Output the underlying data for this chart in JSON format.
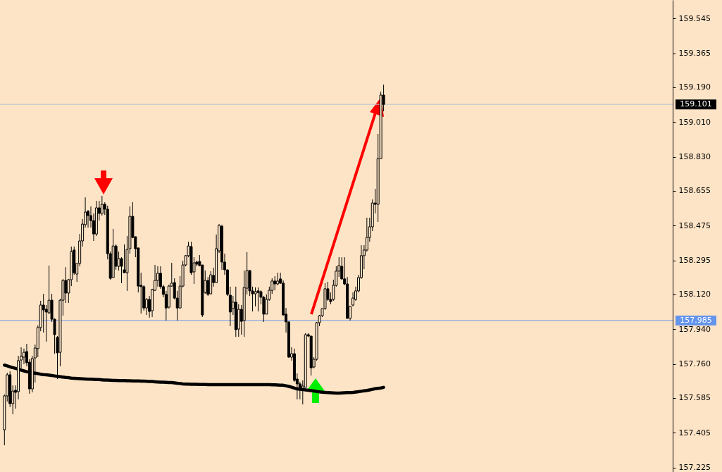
{
  "chart_data": {
    "type": "candlestick",
    "color": "#000000",
    "categories": [
      null,
      null,
      null,
      null,
      null,
      null,
      null,
      null,
      null,
      null,
      null,
      null,
      null,
      null,
      null,
      null,
      null,
      null,
      null,
      null,
      null,
      null,
      null,
      null,
      null,
      null,
      null,
      null,
      null,
      null,
      null,
      null,
      null,
      null,
      null,
      null,
      null,
      null,
      null,
      null,
      null,
      null,
      null,
      null,
      null,
      null,
      null,
      null,
      null,
      null,
      null,
      null,
      null,
      null,
      null,
      null,
      null,
      null,
      null,
      null,
      null,
      null,
      null,
      null,
      null,
      null,
      null,
      null,
      null,
      null,
      null,
      null,
      null,
      null,
      null,
      null,
      null,
      null,
      null,
      null,
      null,
      null,
      null,
      null,
      null,
      null,
      null,
      null,
      null,
      null,
      null,
      null,
      null,
      null,
      null,
      null,
      null,
      null,
      null,
      null,
      null,
      null,
      null,
      null,
      null,
      null,
      null,
      null,
      null,
      null,
      null,
      null,
      null,
      null,
      null,
      null,
      null,
      null,
      null,
      null,
      null,
      null,
      null,
      null,
      null,
      null,
      null,
      null,
      null,
      null,
      null,
      null,
      null,
      null,
      null,
      null,
      null
    ],
    "ohlc": [
      [
        157.421,
        157.603,
        157.341,
        157.596
      ],
      [
        157.596,
        157.716,
        157.567,
        157.705
      ],
      [
        157.705,
        157.723,
        157.538,
        157.556
      ],
      [
        157.556,
        157.65,
        157.501,
        157.621
      ],
      [
        157.625,
        157.65,
        157.53,
        157.614
      ],
      [
        157.618,
        157.803,
        157.578,
        157.778
      ],
      [
        157.781,
        157.847,
        157.738,
        157.8
      ],
      [
        157.796,
        157.84,
        157.76,
        157.821
      ],
      [
        157.825,
        157.865,
        157.749,
        157.767
      ],
      [
        157.77,
        157.785,
        157.607,
        157.632
      ],
      [
        157.632,
        157.803,
        157.614,
        157.789
      ],
      [
        157.792,
        157.861,
        157.665,
        157.843
      ],
      [
        157.84,
        157.96,
        157.796,
        157.949
      ],
      [
        157.949,
        158.087,
        157.93,
        158.065
      ],
      [
        158.065,
        158.123,
        157.923,
        158.04
      ],
      [
        158.043,
        158.065,
        157.876,
        158.029
      ],
      [
        158.025,
        158.269,
        158.018,
        158.09
      ],
      [
        158.09,
        158.123,
        157.978,
        157.992
      ],
      [
        157.992,
        157.996,
        157.814,
        157.912
      ],
      [
        157.898,
        157.905,
        157.683,
        157.818
      ],
      [
        157.821,
        158.098,
        157.749,
        158.09
      ],
      [
        158.09,
        158.2,
        158.01,
        158.192
      ],
      [
        158.192,
        158.261,
        158.076,
        158.127
      ],
      [
        158.127,
        158.2,
        158.076,
        158.196
      ],
      [
        158.196,
        158.367,
        158.163,
        158.341
      ],
      [
        158.349,
        158.367,
        158.221,
        158.232
      ],
      [
        158.225,
        158.28,
        158.185,
        158.28
      ],
      [
        158.28,
        158.432,
        158.265,
        158.396
      ],
      [
        158.396,
        158.509,
        158.367,
        158.483
      ],
      [
        158.48,
        158.621,
        158.465,
        158.545
      ],
      [
        158.549,
        158.556,
        158.465,
        158.527
      ],
      [
        158.527,
        158.574,
        158.465,
        158.501
      ],
      [
        158.501,
        158.538,
        158.396,
        158.432
      ],
      [
        158.432,
        158.603,
        158.421,
        158.567
      ],
      [
        158.567,
        158.603,
        158.501,
        158.538
      ],
      [
        158.538,
        158.629,
        158.527,
        158.585
      ],
      [
        158.585,
        158.596,
        158.53,
        158.56
      ],
      [
        158.56,
        158.578,
        158.301,
        158.33
      ],
      [
        158.33,
        158.341,
        158.196,
        158.203
      ],
      [
        158.207,
        158.458,
        158.207,
        158.37
      ],
      [
        158.37,
        158.378,
        158.247,
        158.265
      ],
      [
        158.265,
        158.341,
        158.243,
        158.305
      ],
      [
        158.305,
        158.312,
        158.178,
        158.265
      ],
      [
        158.247,
        158.378,
        158.229,
        158.232
      ],
      [
        158.232,
        158.421,
        158.138,
        158.352
      ],
      [
        158.356,
        158.574,
        158.33,
        158.523
      ],
      [
        158.523,
        158.596,
        158.41,
        158.414
      ],
      [
        158.418,
        158.418,
        158.312,
        158.356
      ],
      [
        158.36,
        158.36,
        158.13,
        158.163
      ],
      [
        158.167,
        158.232,
        158.021,
        158.16
      ],
      [
        158.16,
        158.167,
        158.036,
        158.05
      ],
      [
        158.05,
        158.101,
        158.014,
        158.094
      ],
      [
        158.094,
        158.112,
        158.0,
        158.032
      ],
      [
        158.036,
        158.149,
        158.003,
        158.145
      ],
      [
        158.141,
        158.272,
        158.138,
        158.192
      ],
      [
        158.192,
        158.265,
        158.16,
        158.229
      ],
      [
        158.229,
        158.265,
        158.149,
        158.16
      ],
      [
        158.16,
        158.17,
        158.105,
        158.12
      ],
      [
        158.12,
        158.138,
        157.985,
        158.05
      ],
      [
        158.054,
        158.17,
        158.047,
        158.163
      ],
      [
        158.163,
        158.283,
        158.16,
        158.178
      ],
      [
        158.181,
        158.203,
        158.094,
        158.101
      ],
      [
        158.101,
        158.138,
        157.985,
        158.05
      ],
      [
        158.05,
        158.214,
        158.047,
        158.163
      ],
      [
        158.163,
        158.294,
        158.156,
        158.272
      ],
      [
        158.272,
        158.323,
        158.265,
        158.32
      ],
      [
        158.32,
        158.392,
        158.312,
        158.37
      ],
      [
        158.367,
        158.392,
        158.221,
        158.232
      ],
      [
        158.236,
        158.312,
        158.174,
        158.283
      ],
      [
        158.287,
        158.294,
        158.265,
        158.276
      ],
      [
        158.29,
        158.323,
        158.265,
        158.269
      ],
      [
        158.272,
        158.272,
        158.003,
        158.014
      ],
      [
        158.13,
        158.243,
        158.123,
        158.192
      ],
      [
        158.192,
        158.21,
        158.112,
        158.12
      ],
      [
        158.123,
        158.24,
        158.12,
        158.221
      ],
      [
        158.218,
        158.258,
        158.16,
        158.181
      ],
      [
        158.181,
        158.429,
        158.178,
        158.356
      ],
      [
        158.345,
        158.483,
        158.334,
        158.476
      ],
      [
        158.472,
        158.48,
        158.247,
        158.287
      ],
      [
        158.287,
        158.33,
        158.221,
        158.247
      ],
      [
        158.247,
        158.247,
        158.112,
        158.12
      ],
      [
        158.116,
        158.16,
        157.956,
        158.029
      ],
      [
        158.047,
        158.112,
        158.014,
        158.08
      ],
      [
        158.08,
        158.16,
        157.901,
        157.938
      ],
      [
        157.941,
        158.069,
        157.901,
        158.043
      ],
      [
        158.043,
        158.065,
        157.912,
        157.981
      ],
      [
        157.985,
        158.243,
        157.901,
        158.156
      ],
      [
        158.152,
        158.338,
        158.12,
        158.243
      ],
      [
        158.243,
        158.247,
        158.112,
        158.138
      ],
      [
        158.138,
        158.16,
        158.032,
        158.123
      ],
      [
        158.123,
        158.156,
        158.058,
        158.134
      ],
      [
        158.138,
        158.156,
        158.032,
        158.13
      ],
      [
        158.134,
        158.141,
        158.069,
        158.105
      ],
      [
        158.105,
        158.112,
        157.978,
        158.018
      ],
      [
        158.018,
        158.12,
        158.018,
        158.094
      ],
      [
        158.094,
        158.16,
        158.087,
        158.141
      ],
      [
        158.141,
        158.203,
        158.123,
        158.189
      ],
      [
        158.189,
        158.214,
        158.141,
        158.174
      ],
      [
        158.174,
        158.232,
        158.167,
        158.189
      ],
      [
        158.2,
        158.232,
        158.174,
        158.178
      ],
      [
        158.178,
        158.192,
        158.01,
        158.014
      ],
      [
        158.018,
        158.05,
        157.923,
        157.978
      ],
      [
        157.978,
        157.978,
        157.792,
        157.796
      ],
      [
        157.796,
        157.847,
        157.778,
        157.814
      ],
      [
        157.814,
        157.84,
        157.669,
        157.676
      ],
      [
        157.683,
        157.712,
        157.578,
        157.658
      ],
      [
        157.658,
        157.669,
        157.578,
        157.636
      ],
      [
        157.636,
        157.676,
        157.552,
        157.647
      ],
      [
        157.64,
        157.92,
        157.64,
        157.912
      ],
      [
        157.912,
        157.92,
        157.901,
        157.905
      ],
      [
        157.905,
        157.905,
        157.701,
        157.741
      ],
      [
        157.745,
        157.796,
        157.738,
        157.785
      ],
      [
        157.785,
        157.978,
        157.778,
        157.974
      ],
      [
        157.974,
        158.014,
        157.956,
        158.01
      ],
      [
        158.01,
        158.047,
        158.003,
        158.047
      ],
      [
        158.047,
        158.178,
        158.04,
        158.149
      ],
      [
        158.149,
        158.185,
        158.087,
        158.094
      ],
      [
        158.094,
        158.13,
        158.069,
        158.083
      ],
      [
        158.094,
        158.196,
        158.087,
        158.167
      ],
      [
        158.167,
        158.265,
        158.16,
        158.24
      ],
      [
        158.24,
        158.312,
        158.21,
        158.269
      ],
      [
        158.265,
        158.312,
        158.196,
        158.2
      ],
      [
        158.2,
        158.312,
        158.167,
        158.174
      ],
      [
        158.174,
        158.21,
        157.996,
        157.996
      ],
      [
        157.996,
        158.061,
        157.985,
        158.058
      ],
      [
        158.065,
        158.13,
        158.058,
        158.101
      ],
      [
        158.094,
        158.16,
        158.087,
        158.138
      ],
      [
        158.138,
        158.221,
        158.13,
        158.207
      ],
      [
        158.207,
        158.374,
        158.2,
        158.32
      ],
      [
        158.32,
        158.374,
        158.25,
        158.349
      ],
      [
        158.349,
        158.516,
        158.341,
        158.414
      ],
      [
        158.414,
        158.516,
        158.392,
        158.469
      ],
      [
        158.469,
        158.61,
        158.447,
        158.592
      ],
      [
        158.592,
        158.665,
        158.538,
        158.585
      ],
      [
        158.585,
        158.949,
        158.494,
        158.821
      ],
      [
        158.821,
        159.167,
        158.821,
        159.149
      ],
      [
        159.149,
        159.203,
        159.065,
        159.101
      ]
    ],
    "series": [
      {
        "type": "line",
        "color": "#000000",
        "values": [
          157.755,
          157.751,
          157.746,
          157.742,
          157.738,
          157.734,
          157.729,
          157.725,
          157.721,
          157.718,
          157.715,
          157.713,
          157.711,
          157.708,
          157.706,
          157.705,
          157.703,
          157.701,
          157.699,
          157.697,
          157.695,
          157.693,
          157.691,
          157.69,
          157.688,
          157.687,
          157.686,
          157.685,
          157.684,
          157.683,
          157.682,
          157.682,
          157.681,
          157.68,
          157.68,
          157.679,
          157.678,
          157.678,
          157.677,
          157.676,
          157.676,
          157.675,
          157.675,
          157.675,
          157.674,
          157.674,
          157.673,
          157.673,
          157.673,
          157.672,
          157.672,
          157.671,
          157.67,
          157.67,
          157.669,
          157.668,
          157.667,
          157.667,
          157.666,
          157.665,
          157.665,
          157.663,
          157.661,
          157.66,
          157.658,
          157.657,
          157.657,
          157.656,
          157.656,
          157.656,
          157.655,
          157.655,
          157.655,
          157.654,
          157.654,
          157.654,
          157.654,
          157.654,
          157.654,
          157.654,
          157.654,
          157.654,
          157.654,
          157.654,
          157.654,
          157.654,
          157.654,
          157.654,
          157.654,
          157.654,
          157.654,
          157.654,
          157.654,
          157.654,
          157.654,
          157.654,
          157.653,
          157.653,
          157.652,
          157.651,
          157.651,
          157.648,
          157.645,
          157.641,
          157.636,
          157.632,
          157.63,
          157.629,
          157.627,
          157.625,
          157.623,
          157.621,
          157.619,
          157.617,
          157.615,
          157.614,
          157.613,
          157.612,
          157.611,
          157.61,
          157.61,
          157.611,
          157.612,
          157.613,
          157.613,
          157.614,
          157.616,
          157.618,
          157.62,
          157.622,
          157.624,
          157.627,
          157.63,
          157.633,
          157.635,
          157.637,
          157.64
        ]
      }
    ],
    "ylim": [
      157.203,
      159.64
    ],
    "yticks": [
      157.225,
      157.405,
      157.585,
      {
        "value": 157.76,
        "label": "157.760"
      },
      {
        "value": 157.94,
        "label": "157.940"
      },
      {
        "value": 158.12,
        "label": "158.120"
      },
      158.295,
      158.475,
      158.655,
      {
        "value": 158.83,
        "label": "158.830"
      },
      {
        "value": 159.01,
        "label": "159.010"
      },
      {
        "value": 159.19,
        "label": "159.190"
      },
      159.365,
      159.545
    ],
    "ref_lines": [
      {
        "axis": "y",
        "value": 157.985,
        "label": "157.985",
        "color": "#6495ed"
      },
      {
        "axis": "y",
        "value": 159.101,
        "label": "159.101",
        "color": "#b4c3d6"
      }
    ],
    "grid": false,
    "tick_labels": "y"
  }
}
